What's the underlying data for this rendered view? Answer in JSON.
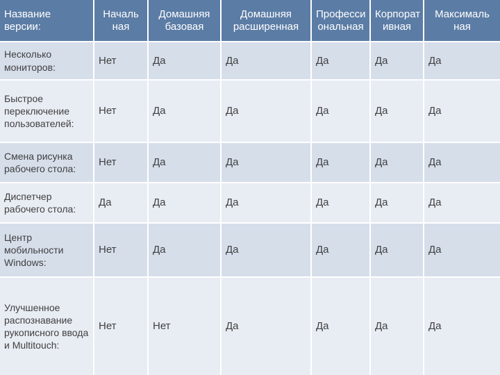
{
  "colors": {
    "header_bg": "#5b7ca5",
    "header_text": "#ffffff",
    "row_odd_bg": "#d6deea",
    "row_even_bg": "#e8ecf3",
    "body_text": "#404040"
  },
  "table": {
    "header": [
      "Название версии:",
      "Началь\nная",
      "Домашняя\nбазовая",
      "Домашняя\nрасширенная",
      "Професси\nональная",
      "Корпорат\nивная",
      "Максималь\nная"
    ],
    "rows": [
      {
        "label": "Несколько мониторов:",
        "values": [
          "Нет",
          "Да",
          "Да",
          "Да",
          "Да",
          "Да"
        ]
      },
      {
        "label": "Быстрое переключение пользователей:",
        "values": [
          "Нет",
          "Да",
          "Да",
          "Да",
          "Да",
          "Да"
        ]
      },
      {
        "label": "Смена рисунка рабочего стола:",
        "values": [
          "Нет",
          "Да",
          "Да",
          "Да",
          "Да",
          "Да"
        ]
      },
      {
        "label": "Диспетчер рабочего стола:",
        "values": [
          "Да",
          "Да",
          "Да",
          "Да",
          "Да",
          "Да"
        ]
      },
      {
        "label": "Центр мобильности Windows:",
        "values": [
          "Нет",
          "Да",
          "Да",
          "Да",
          "Да",
          "Да"
        ]
      },
      {
        "label": "Улучшенное распознавание рукописного ввода и Multitouch:",
        "values": [
          "Нет",
          "Нет",
          "Да",
          "Да",
          "Да",
          "Да"
        ]
      }
    ]
  }
}
